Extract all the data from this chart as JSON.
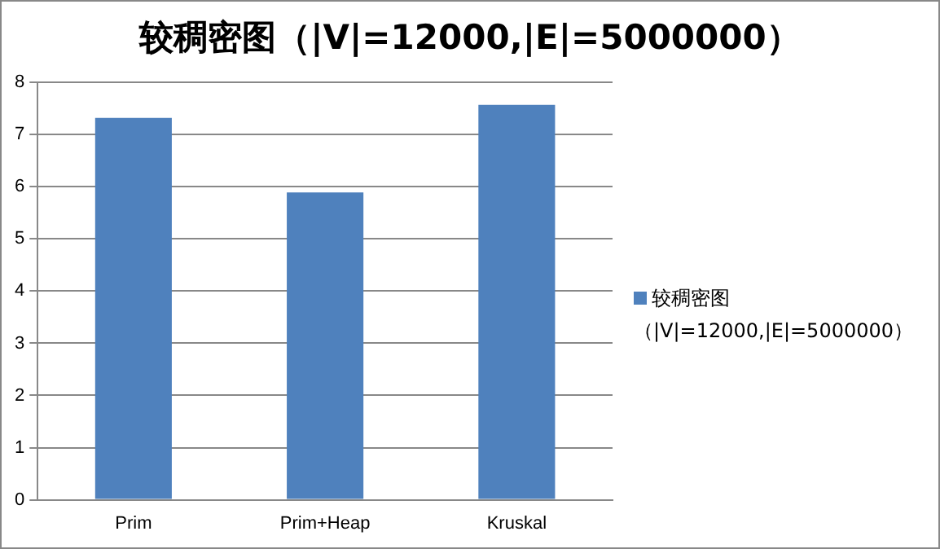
{
  "chart_data": {
    "type": "bar",
    "title": "较稠密图（|V|=12000,|E|=5000000）",
    "categories": [
      "Prim",
      "Prim+Heap",
      "Kruskal"
    ],
    "series": [
      {
        "name": "较稠密图（|V|=12000,|E|=5000000）",
        "color": "#4f81bd",
        "values": [
          7.32,
          5.89,
          7.57
        ]
      }
    ],
    "ylim": [
      0,
      8
    ],
    "yticks": [
      0,
      1,
      2,
      3,
      4,
      5,
      6,
      7,
      8
    ],
    "grid": "y",
    "legend": "right"
  }
}
